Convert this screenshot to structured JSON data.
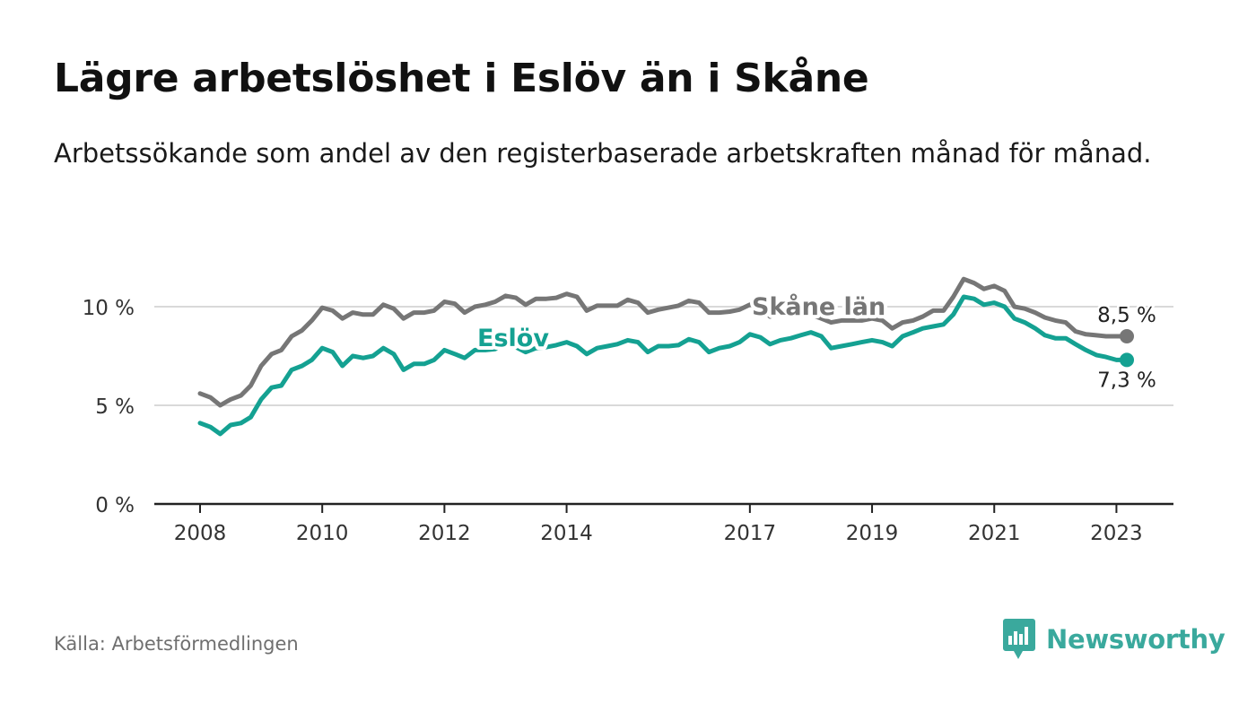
{
  "header": {
    "title": "Lägre arbetslöshet i Eslöv än i Skåne",
    "subtitle": "Arbetssökande som andel av den registerbaserade arbetskraften månad för månad."
  },
  "footer": {
    "source": "Källa: Arbetsförmedlingen",
    "brand": "Newsworthy",
    "brand_color": "#3aa99d"
  },
  "chart_data": {
    "type": "line",
    "x_range": [
      2008.0,
      2023.17
    ],
    "ylim": [
      0,
      12
    ],
    "y_ticks": [
      {
        "value": 0,
        "label": "0 %"
      },
      {
        "value": 5,
        "label": "5 %"
      },
      {
        "value": 10,
        "label": "10 %"
      }
    ],
    "x_ticks": [
      {
        "value": 2008,
        "label": "2008"
      },
      {
        "value": 2010,
        "label": "2010"
      },
      {
        "value": 2012,
        "label": "2012"
      },
      {
        "value": 2014,
        "label": "2014"
      },
      {
        "value": 2017,
        "label": "2017"
      },
      {
        "value": 2019,
        "label": "2019"
      },
      {
        "value": 2021,
        "label": "2021"
      },
      {
        "value": 2023,
        "label": "2023"
      }
    ],
    "grid": true,
    "series": [
      {
        "name": "Skåne län",
        "color": "#767676",
        "end_label": "8,5 %",
        "points": [
          [
            2008.0,
            5.6
          ],
          [
            2008.17,
            5.4
          ],
          [
            2008.33,
            5.0
          ],
          [
            2008.5,
            5.3
          ],
          [
            2008.67,
            5.5
          ],
          [
            2008.83,
            6.0
          ],
          [
            2009.0,
            7.0
          ],
          [
            2009.17,
            7.6
          ],
          [
            2009.33,
            7.8
          ],
          [
            2009.5,
            8.5
          ],
          [
            2009.67,
            8.8
          ],
          [
            2009.83,
            9.3
          ],
          [
            2010.0,
            9.95
          ],
          [
            2010.17,
            9.8
          ],
          [
            2010.33,
            9.4
          ],
          [
            2010.5,
            9.7
          ],
          [
            2010.67,
            9.6
          ],
          [
            2010.83,
            9.6
          ],
          [
            2011.0,
            10.1
          ],
          [
            2011.17,
            9.9
          ],
          [
            2011.33,
            9.4
          ],
          [
            2011.5,
            9.7
          ],
          [
            2011.67,
            9.7
          ],
          [
            2011.83,
            9.8
          ],
          [
            2012.0,
            10.25
          ],
          [
            2012.17,
            10.15
          ],
          [
            2012.33,
            9.7
          ],
          [
            2012.5,
            10.0
          ],
          [
            2012.67,
            10.1
          ],
          [
            2012.83,
            10.25
          ],
          [
            2013.0,
            10.55
          ],
          [
            2013.17,
            10.45
          ],
          [
            2013.33,
            10.1
          ],
          [
            2013.5,
            10.4
          ],
          [
            2013.67,
            10.4
          ],
          [
            2013.83,
            10.45
          ],
          [
            2014.0,
            10.65
          ],
          [
            2014.17,
            10.5
          ],
          [
            2014.33,
            9.8
          ],
          [
            2014.5,
            10.05
          ],
          [
            2014.67,
            10.05
          ],
          [
            2014.83,
            10.05
          ],
          [
            2015.0,
            10.35
          ],
          [
            2015.17,
            10.2
          ],
          [
            2015.33,
            9.7
          ],
          [
            2015.5,
            9.85
          ],
          [
            2015.67,
            9.95
          ],
          [
            2015.83,
            10.05
          ],
          [
            2016.0,
            10.3
          ],
          [
            2016.17,
            10.2
          ],
          [
            2016.33,
            9.7
          ],
          [
            2016.5,
            9.7
          ],
          [
            2016.67,
            9.75
          ],
          [
            2016.83,
            9.85
          ],
          [
            2017.0,
            10.1
          ],
          [
            2017.17,
            10.0
          ],
          [
            2017.33,
            9.5
          ],
          [
            2017.5,
            9.7
          ],
          [
            2017.67,
            9.7
          ],
          [
            2017.83,
            9.75
          ],
          [
            2018.0,
            9.6
          ],
          [
            2018.17,
            9.4
          ],
          [
            2018.33,
            9.2
          ],
          [
            2018.5,
            9.3
          ],
          [
            2018.67,
            9.3
          ],
          [
            2018.83,
            9.3
          ],
          [
            2019.0,
            9.4
          ],
          [
            2019.17,
            9.3
          ],
          [
            2019.33,
            8.9
          ],
          [
            2019.5,
            9.2
          ],
          [
            2019.67,
            9.3
          ],
          [
            2019.83,
            9.5
          ],
          [
            2020.0,
            9.8
          ],
          [
            2020.17,
            9.8
          ],
          [
            2020.33,
            10.5
          ],
          [
            2020.5,
            11.4
          ],
          [
            2020.67,
            11.2
          ],
          [
            2020.83,
            10.9
          ],
          [
            2021.0,
            11.05
          ],
          [
            2021.17,
            10.8
          ],
          [
            2021.33,
            10.0
          ],
          [
            2021.5,
            9.9
          ],
          [
            2021.67,
            9.7
          ],
          [
            2021.83,
            9.45
          ],
          [
            2022.0,
            9.3
          ],
          [
            2022.17,
            9.2
          ],
          [
            2022.33,
            8.75
          ],
          [
            2022.5,
            8.6
          ],
          [
            2022.67,
            8.55
          ],
          [
            2022.83,
            8.5
          ],
          [
            2023.0,
            8.5
          ],
          [
            2023.17,
            8.5
          ]
        ]
      },
      {
        "name": "Eslöv",
        "color": "#14a192",
        "end_label": "7,3 %",
        "points": [
          [
            2008.0,
            4.1
          ],
          [
            2008.17,
            3.9
          ],
          [
            2008.33,
            3.55
          ],
          [
            2008.5,
            4.0
          ],
          [
            2008.67,
            4.1
          ],
          [
            2008.83,
            4.4
          ],
          [
            2009.0,
            5.3
          ],
          [
            2009.17,
            5.9
          ],
          [
            2009.33,
            6.0
          ],
          [
            2009.5,
            6.8
          ],
          [
            2009.67,
            7.0
          ],
          [
            2009.83,
            7.3
          ],
          [
            2010.0,
            7.9
          ],
          [
            2010.17,
            7.7
          ],
          [
            2010.33,
            7.0
          ],
          [
            2010.5,
            7.5
          ],
          [
            2010.67,
            7.4
          ],
          [
            2010.83,
            7.5
          ],
          [
            2011.0,
            7.9
          ],
          [
            2011.17,
            7.6
          ],
          [
            2011.33,
            6.8
          ],
          [
            2011.5,
            7.1
          ],
          [
            2011.67,
            7.1
          ],
          [
            2011.83,
            7.3
          ],
          [
            2012.0,
            7.8
          ],
          [
            2012.17,
            7.6
          ],
          [
            2012.33,
            7.4
          ],
          [
            2012.5,
            7.8
          ],
          [
            2012.67,
            7.8
          ],
          [
            2012.83,
            7.85
          ],
          [
            2013.0,
            8.1
          ],
          [
            2013.17,
            7.95
          ],
          [
            2013.33,
            7.7
          ],
          [
            2013.5,
            7.9
          ],
          [
            2013.67,
            7.95
          ],
          [
            2013.83,
            8.05
          ],
          [
            2014.0,
            8.2
          ],
          [
            2014.17,
            8.0
          ],
          [
            2014.33,
            7.6
          ],
          [
            2014.5,
            7.9
          ],
          [
            2014.67,
            8.0
          ],
          [
            2014.83,
            8.1
          ],
          [
            2015.0,
            8.3
          ],
          [
            2015.17,
            8.2
          ],
          [
            2015.33,
            7.7
          ],
          [
            2015.5,
            8.0
          ],
          [
            2015.67,
            8.0
          ],
          [
            2015.83,
            8.05
          ],
          [
            2016.0,
            8.35
          ],
          [
            2016.17,
            8.2
          ],
          [
            2016.33,
            7.7
          ],
          [
            2016.5,
            7.9
          ],
          [
            2016.67,
            8.0
          ],
          [
            2016.83,
            8.2
          ],
          [
            2017.0,
            8.6
          ],
          [
            2017.17,
            8.45
          ],
          [
            2017.33,
            8.1
          ],
          [
            2017.5,
            8.3
          ],
          [
            2017.67,
            8.4
          ],
          [
            2017.83,
            8.55
          ],
          [
            2018.0,
            8.7
          ],
          [
            2018.17,
            8.5
          ],
          [
            2018.33,
            7.9
          ],
          [
            2018.5,
            8.0
          ],
          [
            2018.67,
            8.1
          ],
          [
            2018.83,
            8.2
          ],
          [
            2019.0,
            8.3
          ],
          [
            2019.17,
            8.2
          ],
          [
            2019.33,
            8.0
          ],
          [
            2019.5,
            8.5
          ],
          [
            2019.67,
            8.7
          ],
          [
            2019.83,
            8.9
          ],
          [
            2020.0,
            9.0
          ],
          [
            2020.17,
            9.1
          ],
          [
            2020.33,
            9.6
          ],
          [
            2020.5,
            10.5
          ],
          [
            2020.67,
            10.4
          ],
          [
            2020.83,
            10.1
          ],
          [
            2021.0,
            10.2
          ],
          [
            2021.17,
            10.0
          ],
          [
            2021.33,
            9.4
          ],
          [
            2021.5,
            9.2
          ],
          [
            2021.67,
            8.9
          ],
          [
            2021.83,
            8.55
          ],
          [
            2022.0,
            8.4
          ],
          [
            2022.17,
            8.4
          ],
          [
            2022.33,
            8.1
          ],
          [
            2022.5,
            7.8
          ],
          [
            2022.67,
            7.55
          ],
          [
            2022.83,
            7.45
          ],
          [
            2023.0,
            7.3
          ],
          [
            2023.17,
            7.3
          ]
        ]
      }
    ]
  }
}
